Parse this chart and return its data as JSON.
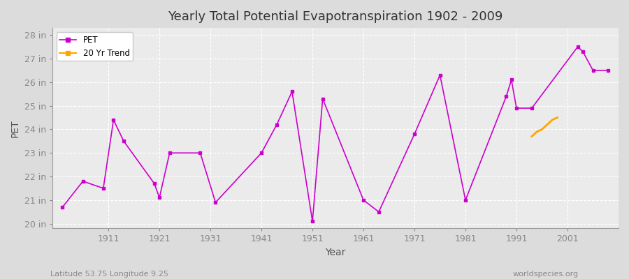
{
  "title": "Yearly Total Potential Evapotranspiration 1902 - 2009",
  "xlabel": "Year",
  "ylabel": "PET",
  "subtitle_left": "Latitude 53.75 Longitude 9.25",
  "subtitle_right": "worldspecies.org",
  "ylim": [
    19.8,
    28.3
  ],
  "xlim": [
    1900,
    2011
  ],
  "yticks": [
    20,
    21,
    22,
    23,
    24,
    25,
    26,
    27,
    28
  ],
  "ytick_labels": [
    "20 in",
    "21 in",
    "22 in",
    "23 in",
    "24 in",
    "25 in",
    "26 in",
    "27 in",
    "28 in"
  ],
  "xticks": [
    1911,
    1921,
    1931,
    1941,
    1951,
    1961,
    1971,
    1981,
    1991,
    2001
  ],
  "pet_color": "#CC00CC",
  "trend_color": "#FFA500",
  "background_color": "#DCDCDC",
  "plot_bg_color": "#EBEBEB",
  "years": [
    1902,
    1903,
    1904,
    1905,
    1906,
    1907,
    1908,
    1909,
    1910,
    1911,
    1912,
    1913,
    1914,
    1915,
    1916,
    1917,
    1918,
    1919,
    1920,
    1921,
    1922,
    1923,
    1924,
    1925,
    1926,
    1927,
    1928,
    1929,
    1930,
    1931,
    1932,
    1933,
    1934,
    1935,
    1936,
    1937,
    1938,
    1939,
    1940,
    1941,
    1942,
    1943,
    1944,
    1945,
    1946,
    1947,
    1948,
    1949,
    1950,
    1951,
    1952,
    1953,
    1954,
    1955,
    1956,
    1957,
    1958,
    1959,
    1960,
    1961,
    1962,
    1963,
    1964,
    1965,
    1966,
    1967,
    1968,
    1969,
    1970,
    1971,
    1972,
    1973,
    1974,
    1975,
    1976,
    1977,
    1978,
    1979,
    1980,
    1981,
    1982,
    1983,
    1984,
    1985,
    1986,
    1987,
    1988,
    1989,
    1990,
    1991,
    1992,
    1993,
    1994,
    1995,
    1996,
    1997,
    1998,
    1999,
    2000,
    2001,
    2002,
    2003,
    2004,
    2005,
    2006,
    2007,
    2008,
    2009
  ],
  "pet_values": [
    20.7,
    null,
    null,
    null,
    21.8,
    null,
    null,
    null,
    21.5,
    null,
    24.4,
    null,
    23.5,
    null,
    null,
    null,
    null,
    null,
    21.7,
    21.1,
    null,
    23.0,
    null,
    null,
    null,
    null,
    null,
    23.0,
    null,
    null,
    20.9,
    null,
    null,
    null,
    null,
    null,
    null,
    null,
    null,
    23.0,
    null,
    null,
    24.2,
    null,
    null,
    25.6,
    null,
    null,
    null,
    20.1,
    null,
    25.3,
    null,
    null,
    null,
    null,
    null,
    null,
    null,
    21.0,
    null,
    null,
    20.5,
    null,
    null,
    null,
    null,
    null,
    null,
    23.8,
    null,
    null,
    null,
    null,
    26.3,
    null,
    null,
    null,
    null,
    21.0,
    null,
    null,
    null,
    null,
    null,
    null,
    null,
    25.4,
    26.1,
    24.9,
    null,
    null,
    24.9,
    null,
    null,
    null,
    null,
    null,
    null,
    null,
    null,
    27.5,
    27.3,
    null,
    26.5,
    null,
    null,
    26.5
  ],
  "trend_years": [
    1994,
    1995,
    1996,
    1997,
    1998,
    1999
  ],
  "trend_values": [
    23.7,
    23.9,
    24.0,
    24.2,
    24.4,
    24.5
  ]
}
